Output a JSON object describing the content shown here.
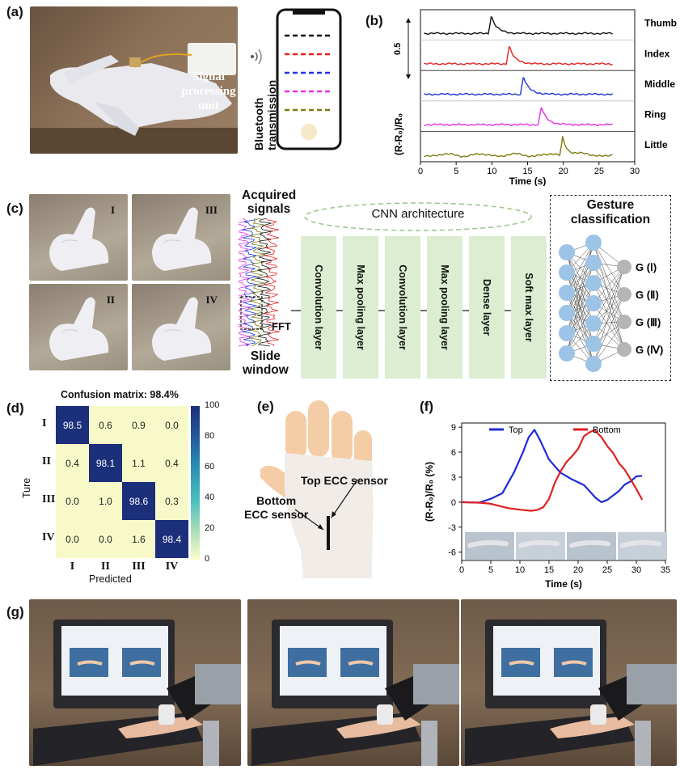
{
  "panel_labels": {
    "a": "(a)",
    "b": "(b)",
    "c": "(c)",
    "d": "(d)",
    "e": "(e)",
    "f": "(f)",
    "g": "(g)"
  },
  "panel_a": {
    "signal_unit_label_1": "Signal",
    "signal_unit_label_2": "processing unit",
    "bluetooth_label_1": "Bluetooth",
    "bluetooth_label_2": "transmission",
    "phone_line_colors": [
      "#111111",
      "#e32222",
      "#2233dd",
      "#e52fe5",
      "#7a7a10"
    ]
  },
  "panel_b": {
    "ylabel": "(R-R₀)/R₀",
    "xlabel": "Time (s)",
    "scale_bar": "0.5",
    "x_ticks": [
      "0",
      "5",
      "10",
      "15",
      "20",
      "25",
      "30"
    ],
    "channels": [
      {
        "name": "Thumb",
        "color": "#111111",
        "peak_time": 9.5
      },
      {
        "name": "Index",
        "color": "#e32222",
        "peak_time": 12.0
      },
      {
        "name": "Middle",
        "color": "#2233dd",
        "peak_time": 14.0
      },
      {
        "name": "Ring",
        "color": "#e52fe5",
        "peak_time": 16.5
      },
      {
        "name": "Little",
        "color": "#7a7a10",
        "peak_time": 19.5
      }
    ]
  },
  "panel_c": {
    "gesture_numerals": [
      "I",
      "III",
      "II",
      "IV"
    ],
    "acquired_1": "Acquired",
    "acquired_2": "signals",
    "slide_1": "Slide",
    "slide_2": "window",
    "fft": "FFT",
    "cnn_title": "CNN architecture",
    "layers": [
      "Convolution layer",
      "Max pooling layer",
      "Convolution layer",
      "Max pooling layer",
      "Dense layer",
      "Soft max layer"
    ],
    "classification_1": "Gesture",
    "classification_2": "classification",
    "outputs": [
      "G (Ⅰ)",
      "G (Ⅱ)",
      "G (Ⅲ)",
      "G (Ⅳ)"
    ]
  },
  "panel_d": {
    "title": "Confusion matrix: 98.4%",
    "xlabel": "Predicted",
    "ylabel": "Ture",
    "row_labels": [
      "I",
      "II",
      "III",
      "IV"
    ],
    "col_labels": [
      "I",
      "II",
      "III",
      "IV"
    ],
    "matrix": [
      [
        "98.5",
        "0.6",
        "0.9",
        "0.0"
      ],
      [
        "0.4",
        "98.1",
        "1.1",
        "0.4"
      ],
      [
        "0.0",
        "1.0",
        "98.6",
        "0.3"
      ],
      [
        "0.0",
        "0.0",
        "1.6",
        "98.4"
      ]
    ],
    "colorbar_ticks": [
      "100",
      "80",
      "60",
      "40",
      "20",
      "0"
    ]
  },
  "panel_e": {
    "top_sensor": "Top ECC sensor",
    "bottom_sensor_1": "Bottom",
    "bottom_sensor_2": "ECC sensor"
  },
  "panel_f": {
    "ylabel": "(R-R₀)/R₀ (%)",
    "xlabel": "Time (s)",
    "y_ticks": [
      "9",
      "6",
      "3",
      "0",
      "-3",
      "-6"
    ],
    "x_ticks": [
      "0",
      "5",
      "10",
      "15",
      "20",
      "25",
      "30",
      "35"
    ],
    "legend_top": "Top",
    "legend_bottom": "Bottom"
  },
  "chart_data": [
    {
      "type": "line",
      "panel": "b",
      "xlabel": "Time (s)",
      "ylabel": "(R-R0)/R0",
      "xlim": [
        0,
        30
      ],
      "series": [
        {
          "name": "Thumb",
          "peak_x": 9.5
        },
        {
          "name": "Index",
          "peak_x": 12
        },
        {
          "name": "Middle",
          "peak_x": 14
        },
        {
          "name": "Ring",
          "peak_x": 16.5
        },
        {
          "name": "Little",
          "peak_x": 19.5
        }
      ]
    },
    {
      "type": "heatmap",
      "panel": "d",
      "title": "Confusion matrix: 98.4%",
      "xlabel": "Predicted",
      "ylabel": "Ture",
      "categories": [
        "I",
        "II",
        "III",
        "IV"
      ],
      "values": [
        [
          98.5,
          0.6,
          0.9,
          0.0
        ],
        [
          0.4,
          98.1,
          1.1,
          0.4
        ],
        [
          0.0,
          1.0,
          98.6,
          0.3
        ],
        [
          0.0,
          0.0,
          1.6,
          98.4
        ]
      ],
      "colorbar_range": [
        0,
        100
      ]
    },
    {
      "type": "line",
      "panel": "f",
      "xlabel": "Time (s)",
      "ylabel": "(R-R0)/R0 (%)",
      "xlim": [
        0,
        35
      ],
      "ylim": [
        -7,
        9.5
      ],
      "series": [
        {
          "name": "Top",
          "color": "#1f2bd8",
          "x": [
            0,
            3,
            5,
            7,
            9,
            10.5,
            11.5,
            12.5,
            13.5,
            15,
            17,
            19,
            21,
            22,
            23,
            24,
            25,
            26,
            27,
            28,
            29,
            30,
            31
          ],
          "y": [
            0,
            0,
            0.3,
            1.2,
            3.5,
            6,
            7.8,
            8.6,
            7.5,
            5,
            3.6,
            2.7,
            2,
            1.4,
            0.4,
            0.1,
            0.2,
            0.8,
            1.4,
            2,
            2.6,
            3,
            3.2
          ]
        },
        {
          "name": "Bottom",
          "color": "#e02020",
          "x": [
            0,
            3,
            5,
            8,
            10,
            12,
            13,
            14,
            15,
            16,
            17,
            18,
            19,
            20,
            21,
            22,
            22.8,
            24,
            25,
            26,
            27,
            28,
            29,
            30,
            31
          ],
          "y": [
            0,
            0,
            -0.3,
            -0.6,
            -1,
            -1,
            -0.9,
            -0.7,
            0.5,
            2.2,
            3.8,
            4.8,
            5.5,
            6.5,
            7.8,
            8.5,
            8.6,
            7.8,
            6.8,
            5.8,
            4.8,
            3.8,
            2.8,
            1.6,
            0.2
          ]
        }
      ]
    }
  ]
}
